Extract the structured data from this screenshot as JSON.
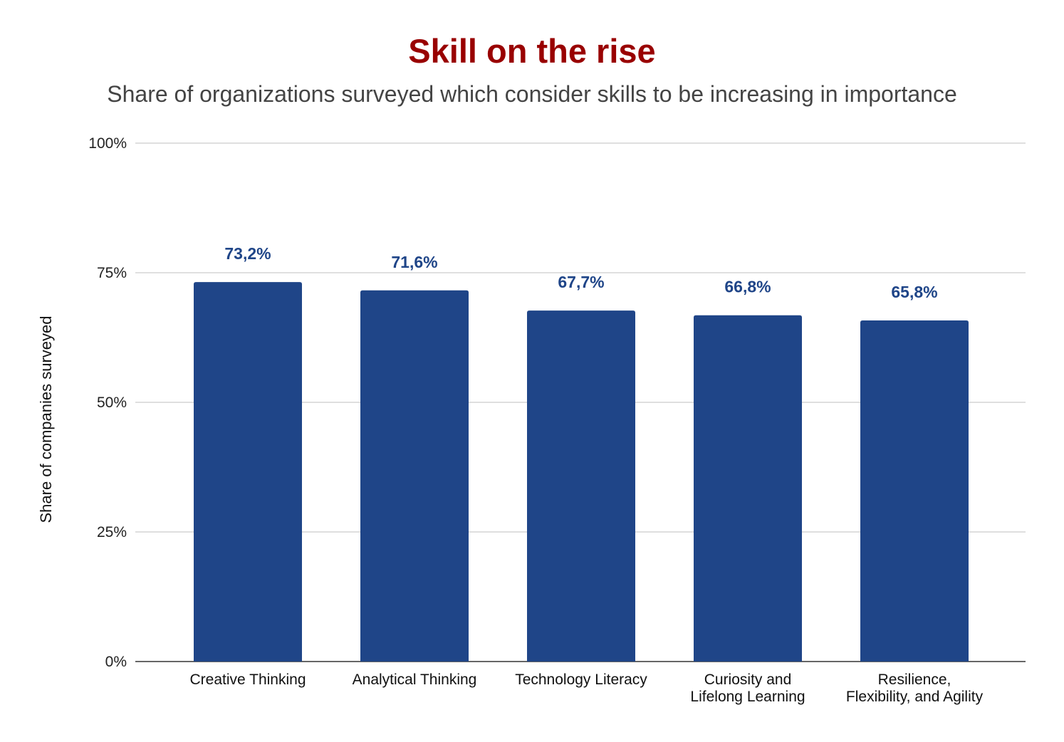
{
  "chart_data": {
    "type": "bar",
    "title": "Skill on the rise",
    "subtitle": "Share of organizations surveyed which consider skills to be increasing in importance",
    "xlabel": "",
    "ylabel": "Share of companies surveyed",
    "categories": [
      [
        "Creative Thinking"
      ],
      [
        "Analytical Thinking"
      ],
      [
        "Technology Literacy"
      ],
      [
        "Curiosity and",
        "Lifelong Learning"
      ],
      [
        "Resilience,",
        "Flexibility, and Agility"
      ]
    ],
    "values": [
      73.2,
      71.6,
      67.7,
      66.8,
      65.8
    ],
    "data_labels": [
      "73,2%",
      "71,6%",
      "67,7%",
      "66,8%",
      "65,8%"
    ],
    "ylim": [
      0,
      100
    ],
    "yticks": [
      0,
      25,
      50,
      75,
      100
    ],
    "ytick_labels": [
      "0%",
      "25%",
      "50%",
      "75%",
      "100%"
    ],
    "grid": true,
    "legend": "none",
    "colors": {
      "bar": "#1f4588",
      "data_label": "#1f4588",
      "title": "#990000",
      "subtitle": "#444444",
      "grid": "#cccccc",
      "axis": "#333333"
    }
  }
}
